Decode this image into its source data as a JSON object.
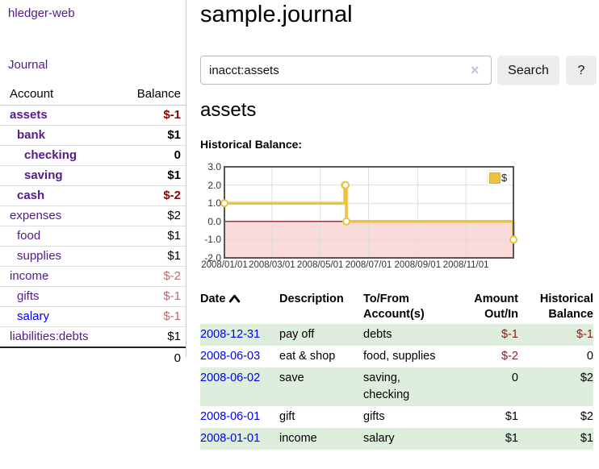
{
  "colors": {
    "link_purple": "#551a8b",
    "link_blue": "#0000ee",
    "negative_strong": "#8b0000",
    "negative_soft": "#bb6a6a",
    "table_negative": "#8b1a1a",
    "row_stripe_green": "#ddeedd",
    "chart_line_gold": "#edc240",
    "chart_negative_region": "#fadbdb",
    "chart_zero_line": "#800000"
  },
  "sidebar": {
    "title": "hledger-web",
    "journal_label": "Journal",
    "accounts_table": {
      "headers": {
        "account": "Account",
        "balance": "Balance"
      },
      "rows": [
        {
          "name": "assets",
          "depth": 1,
          "balance": "$-1",
          "bold": true,
          "balance_color": "neg-strong"
        },
        {
          "name": "bank",
          "depth": 2,
          "balance": "$1",
          "bold": true
        },
        {
          "name": "checking",
          "depth": 3,
          "balance": "0",
          "bold": true
        },
        {
          "name": "saving",
          "depth": 3,
          "balance": "$1",
          "bold": true
        },
        {
          "name": "cash",
          "depth": 2,
          "balance": "$-2",
          "bold": true,
          "balance_color": "neg-strong"
        },
        {
          "name": "expenses",
          "depth": 1,
          "balance": "$2"
        },
        {
          "name": "food",
          "depth": 2,
          "balance": "$1"
        },
        {
          "name": "supplies",
          "depth": 2,
          "balance": "$1"
        },
        {
          "name": "income",
          "depth": 1,
          "balance": "$-2",
          "balance_color": "neg-soft"
        },
        {
          "name": "gifts",
          "depth": 2,
          "balance": "$-1",
          "balance_color": "neg-soft"
        },
        {
          "name": "salary",
          "depth": 2,
          "balance": "$-1",
          "balance_color": "neg-soft",
          "link_color": "blue"
        },
        {
          "name": "liabilities:debts",
          "depth": 1,
          "balance": "$1"
        }
      ],
      "total": "0"
    }
  },
  "header": {
    "title": "sample.journal"
  },
  "search": {
    "value": "inacct:assets",
    "clear_icon": "×",
    "button_label": "Search",
    "help_label": "?"
  },
  "account_page": {
    "heading": "assets",
    "chart_label": "Historical Balance:"
  },
  "chart_data": {
    "type": "line",
    "title": "Historical Balance:",
    "step": true,
    "series": [
      {
        "name": "$",
        "color": "#edc240",
        "points": [
          {
            "x": "2008-01-01",
            "y": 1
          },
          {
            "x": "2008-06-01",
            "y": 2
          },
          {
            "x": "2008-06-02",
            "y": 2
          },
          {
            "x": "2008-06-03",
            "y": 0
          },
          {
            "x": "2008-12-31",
            "y": -1
          }
        ]
      }
    ],
    "x_range": [
      "2008-01-01",
      "2008-12-31"
    ],
    "x_ticks": [
      "2008/01/01",
      "2008/03/01",
      "2008/05/01",
      "2008/07/01",
      "2008/09/01",
      "2008/11/01"
    ],
    "y_ticks": [
      3.0,
      2.0,
      1.0,
      0.0,
      -1.0,
      -2.0
    ],
    "ylim": [
      -2,
      3
    ],
    "grid": true,
    "legend_position": "top-right",
    "negative_region_color": "#fadbdb",
    "zero_line_color": "#800000"
  },
  "transactions": {
    "headers": {
      "date": "Date",
      "description": "Description",
      "accounts_line1": "To/From",
      "accounts_line2": "Account(s)",
      "amount_line1": "Amount",
      "amount_line2": "Out/In",
      "balance_line1": "Historical",
      "balance_line2": "Balance"
    },
    "rows": [
      {
        "date": "2008-12-31",
        "description": "pay off",
        "accounts": "debts",
        "amount": "$-1",
        "amount_negative": true,
        "balance": "$-1",
        "balance_negative": true
      },
      {
        "date": "2008-06-03",
        "description": "eat & shop",
        "accounts": "food, supplies",
        "amount": "$-2",
        "amount_negative": true,
        "balance": "0",
        "balance_negative": false
      },
      {
        "date": "2008-06-02",
        "description": "save",
        "accounts": "saving, checking",
        "amount": "0",
        "amount_negative": false,
        "balance": "$2",
        "balance_negative": false
      },
      {
        "date": "2008-06-01",
        "description": "gift",
        "accounts": "gifts",
        "amount": "$1",
        "amount_negative": false,
        "balance": "$2",
        "balance_negative": false
      },
      {
        "date": "2008-01-01",
        "description": "income",
        "accounts": "salary",
        "amount": "$1",
        "amount_negative": false,
        "balance": "$1",
        "balance_negative": false
      }
    ]
  }
}
